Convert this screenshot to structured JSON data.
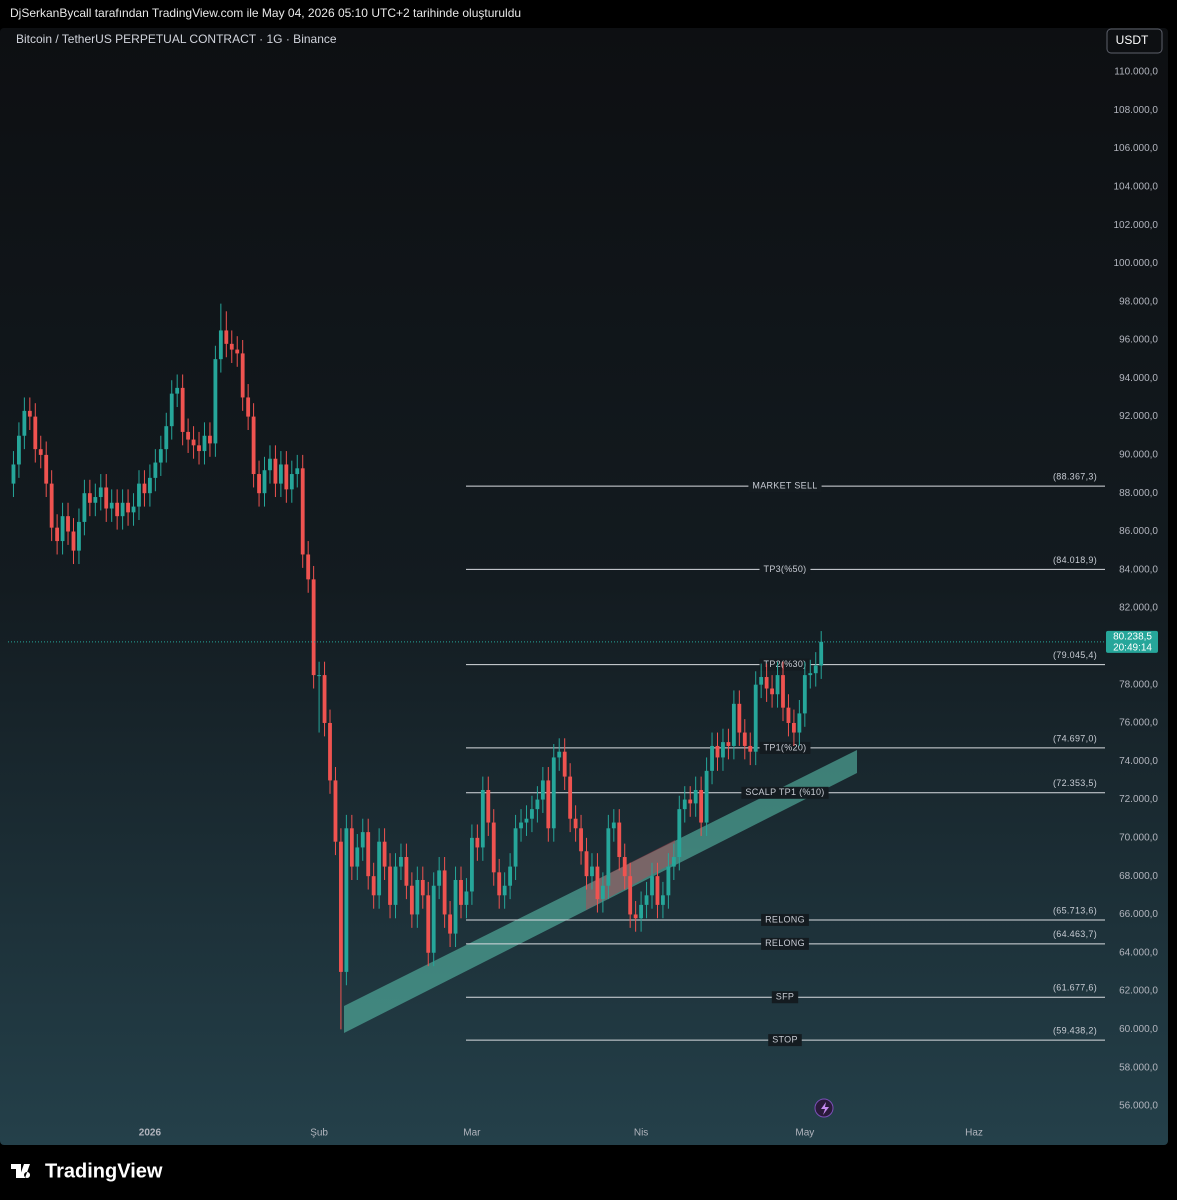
{
  "header": "DjSerkanBycall tarafından TradingView.com ile May 04, 2026 05:10 UTC+2 tarihinde oluşturuldu",
  "brand": "TradingView",
  "chart_data": {
    "type": "candlestick",
    "title": "Bitcoin / TetherUS PERPETUAL CONTRACT · 1G · Binance",
    "currency": "USDT",
    "up_color": "#26a69a",
    "down_color": "#ef5350",
    "x": [
      0,
      1,
      2,
      3,
      4,
      5,
      6,
      7,
      8,
      9,
      10,
      11,
      12,
      13,
      14,
      15,
      16,
      17,
      18,
      19,
      20,
      21,
      22,
      23,
      24,
      25,
      26,
      27,
      28,
      29,
      30,
      31,
      32,
      33,
      34,
      35,
      36,
      37,
      38,
      39,
      40,
      41,
      42,
      43,
      44,
      45,
      46,
      47,
      48,
      49,
      50,
      51,
      52,
      53,
      54,
      55,
      56,
      57,
      58,
      59,
      60,
      61,
      62,
      63,
      64,
      65,
      66,
      67,
      68,
      69,
      70,
      71,
      72,
      73,
      74,
      75,
      76,
      77,
      78,
      79,
      80,
      81,
      82,
      83,
      84,
      85,
      86,
      87,
      88,
      89,
      90,
      91,
      92,
      93,
      94,
      95,
      96,
      97,
      98,
      99,
      100,
      101,
      102,
      103,
      104,
      105,
      106,
      107,
      108,
      109,
      110,
      111,
      112,
      113,
      114,
      115,
      116,
      117,
      118,
      119,
      120,
      121,
      122,
      123,
      124,
      125,
      126,
      127,
      128,
      129,
      130,
      131,
      132,
      133,
      134,
      135,
      136,
      137,
      138,
      139,
      140,
      141,
      142,
      143,
      144,
      145,
      146,
      147,
      148
    ],
    "open": [
      88500,
      89500,
      91000,
      92300,
      92000,
      90300,
      90000,
      88500,
      86200,
      85500,
      86800,
      86000,
      85000,
      86500,
      88000,
      87500,
      87800,
      88300,
      87200,
      87500,
      86800,
      87500,
      87000,
      87300,
      88500,
      88000,
      88800,
      89600,
      90300,
      91500,
      93200,
      93500,
      91200,
      90800,
      90500,
      90200,
      91000,
      90600,
      95000,
      96500,
      95800,
      95500,
      95300,
      93000,
      92000,
      89000,
      88000,
      89200,
      89800,
      88500,
      89500,
      88200,
      89000,
      89300,
      84800,
      83500,
      78500,
      78500,
      76000,
      73000,
      69800,
      63000,
      70500,
      68500,
      69500,
      70300,
      68000,
      67000,
      69800,
      68500,
      66500,
      68500,
      69000,
      67500,
      66000,
      67800,
      67000,
      64000,
      67500,
      68300,
      66000,
      65000,
      67800,
      66500,
      67200,
      70000,
      69500,
      72500,
      70800,
      68200,
      67000,
      67500,
      68500,
      70500,
      70800,
      71000,
      71500,
      72000,
      73000,
      70500,
      74200,
      74500,
      73200,
      71000,
      70500,
      69300,
      68000,
      68500,
      66800,
      67500,
      70500,
      70800,
      69000,
      68000,
      66000,
      65800,
      66500,
      67000,
      68000,
      66500,
      67000,
      68500,
      69000,
      71500,
      72000,
      71800,
      72500,
      70800,
      73500,
      74800,
      74200,
      75000,
      74800,
      77000,
      75500,
      74800,
      74500,
      78000,
      78400,
      77800,
      77500,
      78500,
      76800,
      76000,
      75500,
      76500,
      78500,
      78600,
      79000
    ],
    "high": [
      90200,
      91700,
      93000,
      93000,
      92700,
      91000,
      90700,
      89200,
      86900,
      87500,
      87500,
      86700,
      87200,
      88700,
      88700,
      88500,
      89000,
      89000,
      88200,
      88200,
      88200,
      88200,
      88000,
      89200,
      89200,
      89500,
      90300,
      91000,
      92200,
      93900,
      94200,
      94200,
      91900,
      91500,
      91200,
      91700,
      91700,
      95700,
      97900,
      97500,
      96500,
      96200,
      96000,
      93700,
      92700,
      89700,
      89900,
      90500,
      90500,
      90200,
      90200,
      89700,
      90000,
      90000,
      85500,
      84200,
      79200,
      79200,
      76700,
      73700,
      70500,
      71200,
      71200,
      70200,
      71000,
      71000,
      68700,
      70500,
      70500,
      69200,
      69200,
      69700,
      69700,
      68200,
      68500,
      68500,
      67700,
      68200,
      69000,
      69000,
      66700,
      68500,
      68500,
      67900,
      70700,
      70700,
      73200,
      73200,
      71500,
      68900,
      68200,
      69200,
      71200,
      71500,
      71700,
      72200,
      72700,
      73700,
      73700,
      74900,
      75200,
      75200,
      73900,
      71700,
      71200,
      70000,
      69200,
      69200,
      68200,
      71200,
      71500,
      71500,
      69700,
      68700,
      66700,
      67200,
      67700,
      68700,
      68700,
      67700,
      69200,
      69700,
      72200,
      72700,
      72700,
      73200,
      73200,
      74200,
      75500,
      75500,
      75700,
      75700,
      77700,
      77700,
      76200,
      75500,
      78700,
      79100,
      79100,
      78500,
      79200,
      79200,
      77500,
      76700,
      77200,
      79200,
      79300,
      79700,
      80800
    ],
    "low": [
      87800,
      88800,
      90300,
      91300,
      89600,
      89300,
      87800,
      85500,
      84800,
      84800,
      85300,
      84300,
      84300,
      85800,
      86800,
      86800,
      87100,
      86500,
      86500,
      86100,
      86100,
      86300,
      86300,
      86600,
      87300,
      87300,
      88100,
      88900,
      89600,
      90800,
      92500,
      90500,
      90100,
      89800,
      89500,
      89500,
      89900,
      89900,
      94300,
      95100,
      94800,
      94600,
      92300,
      91300,
      88300,
      87300,
      87300,
      88500,
      87800,
      87800,
      87500,
      87500,
      88300,
      84100,
      82800,
      77800,
      75500,
      75300,
      72300,
      69100,
      60000,
      62300,
      67800,
      67800,
      68800,
      67300,
      66300,
      66300,
      67800,
      65800,
      65800,
      67800,
      66800,
      65300,
      65300,
      66300,
      63300,
      63300,
      66800,
      65300,
      64300,
      64300,
      65800,
      65800,
      66500,
      68800,
      68800,
      70100,
      67500,
      66300,
      66300,
      66800,
      67800,
      69800,
      70100,
      70300,
      70800,
      71300,
      69800,
      69800,
      73500,
      72500,
      70300,
      69800,
      68600,
      67300,
      67300,
      66100,
      66100,
      66800,
      69800,
      68300,
      67300,
      65300,
      65100,
      65100,
      65800,
      66300,
      65800,
      65800,
      66300,
      67800,
      68300,
      70800,
      71100,
      71100,
      70100,
      70100,
      72800,
      73500,
      73500,
      74100,
      74100,
      74800,
      74100,
      73800,
      73800,
      77300,
      77100,
      76800,
      76800,
      76100,
      75300,
      74800,
      74800,
      75800,
      77800,
      77900,
      78300
    ],
    "close": [
      89500,
      91000,
      92300,
      92000,
      90300,
      90000,
      88500,
      86200,
      85500,
      86800,
      86000,
      85000,
      86500,
      88000,
      87500,
      87800,
      88300,
      87200,
      87500,
      86800,
      87500,
      87000,
      87300,
      88500,
      88000,
      88800,
      89600,
      90300,
      91500,
      93200,
      93500,
      91200,
      90800,
      90500,
      90200,
      91000,
      90600,
      95000,
      96500,
      95800,
      95500,
      95300,
      93000,
      92000,
      89000,
      88000,
      89200,
      89800,
      88500,
      89500,
      88200,
      89000,
      89300,
      84800,
      83500,
      78500,
      78500,
      76000,
      73000,
      69800,
      63000,
      70500,
      68500,
      69500,
      70300,
      68000,
      67000,
      69800,
      68500,
      66500,
      68500,
      69000,
      67500,
      66000,
      67800,
      67000,
      64000,
      67500,
      68300,
      66000,
      65000,
      67800,
      66500,
      67200,
      70000,
      69500,
      72500,
      70800,
      68200,
      67000,
      67500,
      68500,
      70500,
      70800,
      71000,
      71500,
      72000,
      73000,
      70500,
      74200,
      74500,
      73200,
      71000,
      70500,
      69300,
      68000,
      68500,
      66800,
      67500,
      70500,
      70800,
      69000,
      68000,
      66000,
      65800,
      66500,
      67000,
      68000,
      66500,
      67000,
      68500,
      69000,
      71500,
      72000,
      71800,
      72500,
      70800,
      73500,
      74800,
      74200,
      75000,
      74800,
      77000,
      75500,
      74800,
      74500,
      78000,
      78400,
      77800,
      77500,
      78500,
      76800,
      76000,
      75500,
      76500,
      78500,
      78600,
      79000,
      80238.5
    ],
    "last_price_label": "80.238,5",
    "countdown": "20:49:14",
    "xlim": [
      -1,
      200
    ],
    "xticks": [
      {
        "value": 25,
        "label": "2026"
      },
      {
        "value": 56,
        "label": "Şub"
      },
      {
        "value": 84,
        "label": "Mar"
      },
      {
        "value": 115,
        "label": "Nis"
      },
      {
        "value": 145,
        "label": "May"
      },
      {
        "value": 176,
        "label": "Haz"
      }
    ],
    "ylim": [
      53960,
      112190
    ],
    "yticks": [
      {
        "value": 56000,
        "label": "56.000,0"
      },
      {
        "value": 58000,
        "label": "58.000,0"
      },
      {
        "value": 60000,
        "label": "60.000,0"
      },
      {
        "value": 62000,
        "label": "62.000,0"
      },
      {
        "value": 64000,
        "label": "64.000,0"
      },
      {
        "value": 66000,
        "label": "66.000,0"
      },
      {
        "value": 68000,
        "label": "68.000,0"
      },
      {
        "value": 70000,
        "label": "70.000,0"
      },
      {
        "value": 72000,
        "label": "72.000,0"
      },
      {
        "value": 74000,
        "label": "74.000,0"
      },
      {
        "value": 76000,
        "label": "76.000,0"
      },
      {
        "value": 78000,
        "label": "78.000,0"
      },
      {
        "value": 80000,
        "label": "80.000,0"
      },
      {
        "value": 82000,
        "label": "82.000,0"
      },
      {
        "value": 84000,
        "label": "84.000,0"
      },
      {
        "value": 86000,
        "label": "86.000,0"
      },
      {
        "value": 88000,
        "label": "88.000,0"
      },
      {
        "value": 90000,
        "label": "90.000,0"
      },
      {
        "value": 92000,
        "label": "92.000,0"
      },
      {
        "value": 94000,
        "label": "94.000,0"
      },
      {
        "value": 96000,
        "label": "96.000,0"
      },
      {
        "value": 98000,
        "label": "98.000,0"
      },
      {
        "value": 100000,
        "label": "100.000,0"
      },
      {
        "value": 102000,
        "label": "102.000,0"
      },
      {
        "value": 104000,
        "label": "104.000,0"
      },
      {
        "value": 106000,
        "label": "106.000,0"
      },
      {
        "value": 108000,
        "label": "108.000,0"
      },
      {
        "value": 110000,
        "label": "110.000,0"
      }
    ],
    "grid": false,
    "levels": [
      {
        "name": "MARKET SELL",
        "value": 88367.3,
        "label": "(88.367,3)"
      },
      {
        "name": "TP3(%50)",
        "value": 84018.9,
        "label": "(84.018,9)"
      },
      {
        "name": "TP2(%30)",
        "value": 79045.4,
        "label": "(79.045,4)"
      },
      {
        "name": "TP1(%20)",
        "value": 74697.0,
        "label": "(74.697,0)"
      },
      {
        "name": "SCALP TP1 (%10)",
        "value": 72353.5,
        "label": "(72.353,5)"
      },
      {
        "name": "RELONG",
        "value": 65713.6,
        "label": "(65.713,6)"
      },
      {
        "name": "RELONG",
        "value": 64463.7,
        "label": "(64.463,7)"
      },
      {
        "name": "SFP",
        "value": 61677.6,
        "label": "(61.677,6)"
      },
      {
        "name": "STOP",
        "value": 59438.2,
        "label": "(59.438,2)"
      }
    ]
  }
}
